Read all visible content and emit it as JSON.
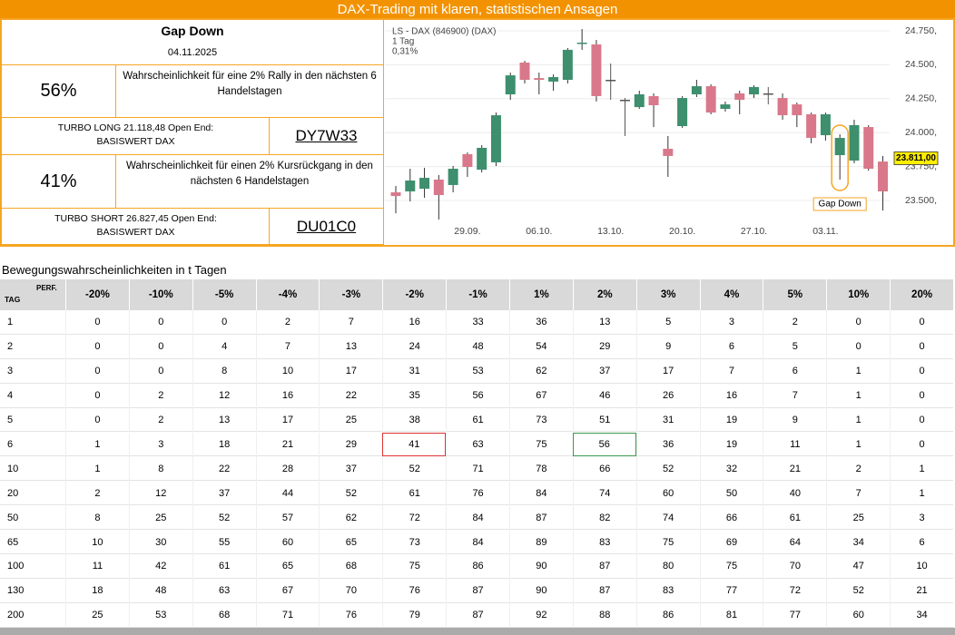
{
  "header": {
    "title": "DAX-Trading mit klaren, statistischen Ansagen"
  },
  "panel": {
    "title": "Gap Down",
    "date": "04.11.2025",
    "long": {
      "probability": "56%",
      "text": "Wahrscheinlichkeit für eine 2% Rally in den nächsten 6 Handelstagen",
      "product_line1": "TURBO LONG 21.118,48 Open End:",
      "product_line2": "BASISWERT DAX",
      "code": "DY7W33"
    },
    "short": {
      "probability": "41%",
      "text": "Wahrscheinlichkeit für einen 2% Kursrückgang in den nächsten 6 Handelstagen",
      "product_line1": "TURBO SHORT 26.827,45 Open End:",
      "product_line2": "BASISWERT DAX",
      "code": "DU01C0"
    }
  },
  "chart_data": {
    "type": "candlestick",
    "title": "LS - DAX (846900) (DAX)",
    "subtitle": [
      "1 Tag",
      "0,31%"
    ],
    "categories": [
      null,
      null,
      null,
      null,
      null,
      "29.09.",
      null,
      null,
      null,
      null,
      "06.10.",
      null,
      null,
      null,
      null,
      "13.10.",
      null,
      null,
      null,
      null,
      "20.10.",
      null,
      null,
      null,
      null,
      "27.10.",
      null,
      null,
      null,
      null,
      "03.11.",
      null,
      null,
      null,
      null
    ],
    "open": [
      23560,
      23567,
      23587,
      23654,
      23614,
      23841,
      23727,
      23781,
      24282,
      24516,
      24402,
      24376,
      24389,
      24656,
      24650,
      24389,
      24242,
      24188,
      24269,
      23881,
      24048,
      24282,
      24342,
      24175,
      24289,
      24282,
      24289,
      24255,
      24208,
      24135,
      23981,
      23834,
      23794,
      24041,
      23787
    ],
    "high": [
      23607,
      23734,
      23741,
      23687,
      23754,
      23854,
      23908,
      24148,
      24442,
      24529,
      24442,
      24429,
      24623,
      24763,
      24683,
      24509,
      24255,
      24309,
      24289,
      23975,
      24269,
      24389,
      24356,
      24229,
      24309,
      24349,
      24336,
      24289,
      24222,
      24148,
      24148,
      23988,
      24095,
      24055,
      23828
    ],
    "low": [
      23406,
      23493,
      23520,
      23360,
      23560,
      23674,
      23707,
      23754,
      24242,
      24362,
      24282,
      24309,
      24362,
      24610,
      24229,
      24242,
      23975,
      24175,
      24041,
      23674,
      24035,
      24262,
      24135,
      24155,
      24135,
      24255,
      24208,
      24095,
      24041,
      23921,
      23941,
      23654,
      23774,
      23720,
      23426
    ],
    "close": [
      23533,
      23647,
      23667,
      23540,
      23734,
      23747,
      23888,
      24128,
      24422,
      24389,
      24389,
      24409,
      24610,
      24663,
      24269,
      24389,
      24242,
      24282,
      24202,
      23828,
      24255,
      24342,
      24148,
      24208,
      24242,
      24336,
      24289,
      24128,
      24128,
      23961,
      24135,
      23961,
      24055,
      23734,
      23567
    ],
    "up_color": "#3d8f6e",
    "down_color": "#d9788a",
    "doji_color": "#555555",
    "ylim": [
      23200,
      24800
    ],
    "yticks": [
      {
        "value": 23500,
        "label": "23.500,"
      },
      {
        "value": 23750,
        "label": "23.750,"
      },
      {
        "value": 24000,
        "label": "24.000,"
      },
      {
        "value": 24250,
        "label": "24.250,"
      },
      {
        "value": 24500,
        "label": "24.500,"
      },
      {
        "value": 24750,
        "label": "24.750,"
      }
    ],
    "grid": true,
    "price_label": {
      "value": 23811,
      "label": "23.811,00"
    },
    "annotation": "Gap Down"
  },
  "table": {
    "title": "Bewegungswahrscheinlichkeiten in t Tagen",
    "corner_row": "TAG",
    "corner_col": "PERF.",
    "columns": [
      "-20%",
      "-10%",
      "-5%",
      "-4%",
      "-3%",
      "-2%",
      "-1%",
      "1%",
      "2%",
      "3%",
      "4%",
      "5%",
      "10%",
      "20%"
    ],
    "rows": [
      [
        1,
        0,
        0,
        0,
        2,
        7,
        16,
        33,
        36,
        13,
        5,
        3,
        2,
        0,
        0
      ],
      [
        2,
        0,
        0,
        4,
        7,
        13,
        24,
        48,
        54,
        29,
        9,
        6,
        5,
        0,
        0
      ],
      [
        3,
        0,
        0,
        8,
        10,
        17,
        31,
        53,
        62,
        37,
        17,
        7,
        6,
        1,
        0
      ],
      [
        4,
        0,
        2,
        12,
        16,
        22,
        35,
        56,
        67,
        46,
        26,
        16,
        7,
        1,
        0
      ],
      [
        5,
        0,
        2,
        13,
        17,
        25,
        38,
        61,
        73,
        51,
        31,
        19,
        9,
        1,
        0
      ],
      [
        6,
        1,
        3,
        18,
        21,
        29,
        41,
        63,
        75,
        56,
        36,
        19,
        11,
        1,
        0
      ],
      [
        10,
        1,
        8,
        22,
        28,
        37,
        52,
        71,
        78,
        66,
        52,
        32,
        21,
        2,
        1
      ],
      [
        20,
        2,
        12,
        37,
        44,
        52,
        61,
        76,
        84,
        74,
        60,
        50,
        40,
        7,
        1
      ],
      [
        50,
        8,
        25,
        52,
        57,
        62,
        72,
        84,
        87,
        82,
        74,
        66,
        61,
        25,
        3
      ],
      [
        65,
        10,
        30,
        55,
        60,
        65,
        73,
        84,
        89,
        83,
        75,
        69,
        64,
        34,
        6
      ],
      [
        100,
        11,
        42,
        61,
        65,
        68,
        75,
        86,
        90,
        87,
        80,
        75,
        70,
        47,
        10
      ],
      [
        130,
        18,
        48,
        63,
        67,
        70,
        76,
        87,
        90,
        87,
        83,
        77,
        72,
        52,
        21
      ],
      [
        200,
        25,
        53,
        68,
        71,
        76,
        79,
        87,
        92,
        88,
        86,
        81,
        77,
        60,
        34
      ]
    ]
  }
}
